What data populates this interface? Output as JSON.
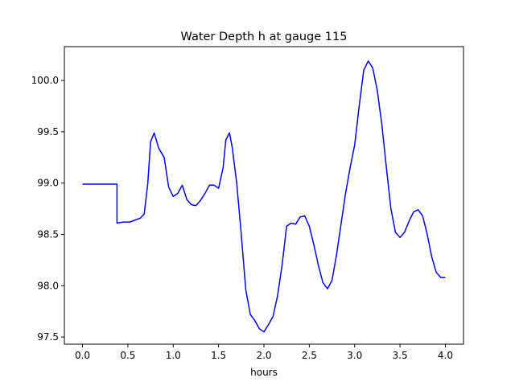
{
  "chart_data": {
    "type": "line",
    "title": "Water Depth h at gauge 115",
    "xlabel": "hours",
    "ylabel": "",
    "xlim": [
      -0.2,
      4.2
    ],
    "ylim": [
      97.43,
      100.33
    ],
    "xticks": [
      0.0,
      0.5,
      1.0,
      1.5,
      2.0,
      2.5,
      3.0,
      3.5,
      4.0
    ],
    "xtick_labels": [
      "0.0",
      "0.5",
      "1.0",
      "1.5",
      "2.0",
      "2.5",
      "3.0",
      "3.5",
      "4.0"
    ],
    "yticks": [
      97.5,
      98.0,
      98.5,
      99.0,
      99.5,
      100.0
    ],
    "ytick_labels": [
      "97.5",
      "98.0",
      "98.5",
      "99.0",
      "99.5",
      "100.0"
    ],
    "grid": false,
    "legend": false,
    "series": [
      {
        "color": "#0000ff",
        "x": [
          0.0,
          0.2,
          0.38,
          0.38,
          0.45,
          0.52,
          0.58,
          0.64,
          0.68,
          0.72,
          0.75,
          0.79,
          0.84,
          0.9,
          0.95,
          1.0,
          1.05,
          1.1,
          1.15,
          1.2,
          1.25,
          1.3,
          1.35,
          1.4,
          1.45,
          1.5,
          1.55,
          1.58,
          1.62,
          1.65,
          1.7,
          1.75,
          1.8,
          1.85,
          1.9,
          1.95,
          2.0,
          2.05,
          2.1,
          2.15,
          2.2,
          2.25,
          2.3,
          2.35,
          2.4,
          2.45,
          2.5,
          2.55,
          2.6,
          2.65,
          2.7,
          2.75,
          2.8,
          2.85,
          2.9,
          2.95,
          3.0,
          3.05,
          3.1,
          3.15,
          3.2,
          3.25,
          3.3,
          3.35,
          3.4,
          3.45,
          3.5,
          3.55,
          3.6,
          3.65,
          3.7,
          3.75,
          3.8,
          3.85,
          3.9,
          3.95,
          4.0
        ],
        "y": [
          98.99,
          98.99,
          98.99,
          98.61,
          98.62,
          98.62,
          98.64,
          98.66,
          98.7,
          99.0,
          99.4,
          99.49,
          99.34,
          99.25,
          98.96,
          98.87,
          98.9,
          98.98,
          98.84,
          98.79,
          98.78,
          98.83,
          98.9,
          98.98,
          98.98,
          98.95,
          99.15,
          99.42,
          99.49,
          99.35,
          99.0,
          98.5,
          97.96,
          97.72,
          97.66,
          97.58,
          97.55,
          97.62,
          97.7,
          97.9,
          98.2,
          98.58,
          98.61,
          98.6,
          98.67,
          98.68,
          98.58,
          98.4,
          98.2,
          98.03,
          97.97,
          98.05,
          98.3,
          98.6,
          98.9,
          99.15,
          99.37,
          99.75,
          100.1,
          100.19,
          100.12,
          99.9,
          99.57,
          99.15,
          98.75,
          98.52,
          98.47,
          98.52,
          98.63,
          98.72,
          98.74,
          98.68,
          98.5,
          98.28,
          98.13,
          98.08,
          98.08
        ]
      }
    ]
  }
}
